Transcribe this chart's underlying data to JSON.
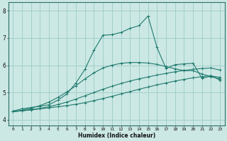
{
  "xlabel": "Humidex (Indice chaleur)",
  "ylabel": "",
  "bg_color": "#cce8e4",
  "grid_color": "#99ccc7",
  "line_color": "#1e7a6e",
  "xlim": [
    -0.5,
    23.5
  ],
  "ylim": [
    3.8,
    8.3
  ],
  "xticks": [
    0,
    1,
    2,
    3,
    4,
    5,
    6,
    7,
    8,
    9,
    10,
    11,
    12,
    13,
    14,
    15,
    16,
    17,
    18,
    19,
    20,
    21,
    22,
    23
  ],
  "yticks": [
    4,
    5,
    6,
    7,
    8
  ],
  "line1_x": [
    0,
    1,
    2,
    3,
    4,
    5,
    6,
    7,
    8,
    9,
    10,
    11,
    12,
    13,
    14,
    15,
    16,
    17,
    18,
    19,
    20,
    21,
    22,
    23
  ],
  "line1_y": [
    4.3,
    4.33,
    4.36,
    4.4,
    4.44,
    4.48,
    4.52,
    4.57,
    4.63,
    4.7,
    4.78,
    4.86,
    4.95,
    5.03,
    5.12,
    5.2,
    5.28,
    5.35,
    5.42,
    5.48,
    5.54,
    5.58,
    5.62,
    5.45
  ],
  "line2_x": [
    0,
    1,
    2,
    3,
    4,
    5,
    6,
    7,
    8,
    9,
    10,
    11,
    12,
    13,
    14,
    15,
    16,
    17,
    18,
    19,
    20,
    21,
    22,
    23
  ],
  "line2_y": [
    4.3,
    4.33,
    4.37,
    4.42,
    4.48,
    4.56,
    4.65,
    4.76,
    4.88,
    5.0,
    5.12,
    5.23,
    5.33,
    5.42,
    5.5,
    5.57,
    5.64,
    5.7,
    5.76,
    5.81,
    5.85,
    5.88,
    5.9,
    5.82
  ],
  "line3_x": [
    0,
    1,
    2,
    3,
    4,
    5,
    6,
    7,
    8,
    9,
    10,
    11,
    12,
    13,
    14,
    15,
    16,
    17,
    18,
    19,
    20,
    21,
    22,
    23
  ],
  "line3_y": [
    4.3,
    4.35,
    4.42,
    4.52,
    4.65,
    4.82,
    5.02,
    5.25,
    5.5,
    5.72,
    5.9,
    6.0,
    6.07,
    6.1,
    6.1,
    6.08,
    6.03,
    5.95,
    5.87,
    5.8,
    5.8,
    5.68,
    5.58,
    5.5
  ],
  "line4_x": [
    0,
    1,
    2,
    3,
    4,
    5,
    6,
    7,
    8,
    9,
    10,
    11,
    12,
    13,
    14,
    15,
    16,
    17,
    18,
    19,
    20,
    21,
    22,
    23
  ],
  "line4_y": [
    4.32,
    4.4,
    4.45,
    4.5,
    4.55,
    4.72,
    4.95,
    5.35,
    5.85,
    6.55,
    7.1,
    7.12,
    7.2,
    7.35,
    7.45,
    7.8,
    6.65,
    5.88,
    6.02,
    6.05,
    6.07,
    5.52,
    5.6,
    5.56
  ],
  "marker": "+",
  "markersize": 3,
  "linewidth": 0.8
}
